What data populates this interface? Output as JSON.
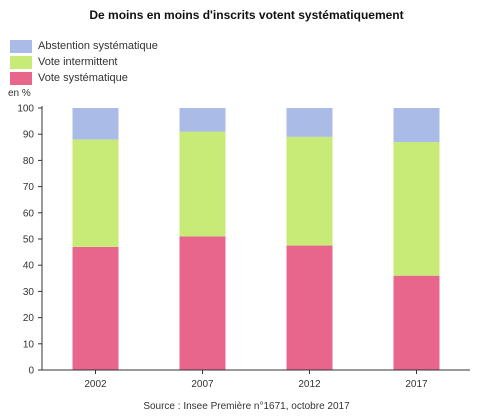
{
  "chart_data": {
    "type": "bar",
    "stacked": true,
    "title": "De moins en moins d'inscrits votent systématiquement",
    "unit_label": "en %",
    "categories": [
      "2002",
      "2007",
      "2012",
      "2017"
    ],
    "series": [
      {
        "name": "Vote systématique",
        "color": "#e8668c",
        "values": [
          47,
          51,
          47.5,
          36
        ]
      },
      {
        "name": "Vote intermittent",
        "color": "#c8eb78",
        "values": [
          41,
          40,
          41.5,
          51
        ]
      },
      {
        "name": "Abstention systématique",
        "color": "#a9bbe6",
        "values": [
          12,
          9,
          11,
          13
        ]
      }
    ],
    "legend_order": [
      2,
      1,
      0
    ],
    "legend_placement": "top-left",
    "ylim": [
      0,
      100
    ],
    "yticks": [
      0,
      10,
      20,
      30,
      40,
      50,
      60,
      70,
      80,
      90,
      100
    ],
    "grid": false,
    "source": "Source : Insee Première n°1671, octobre 2017"
  }
}
